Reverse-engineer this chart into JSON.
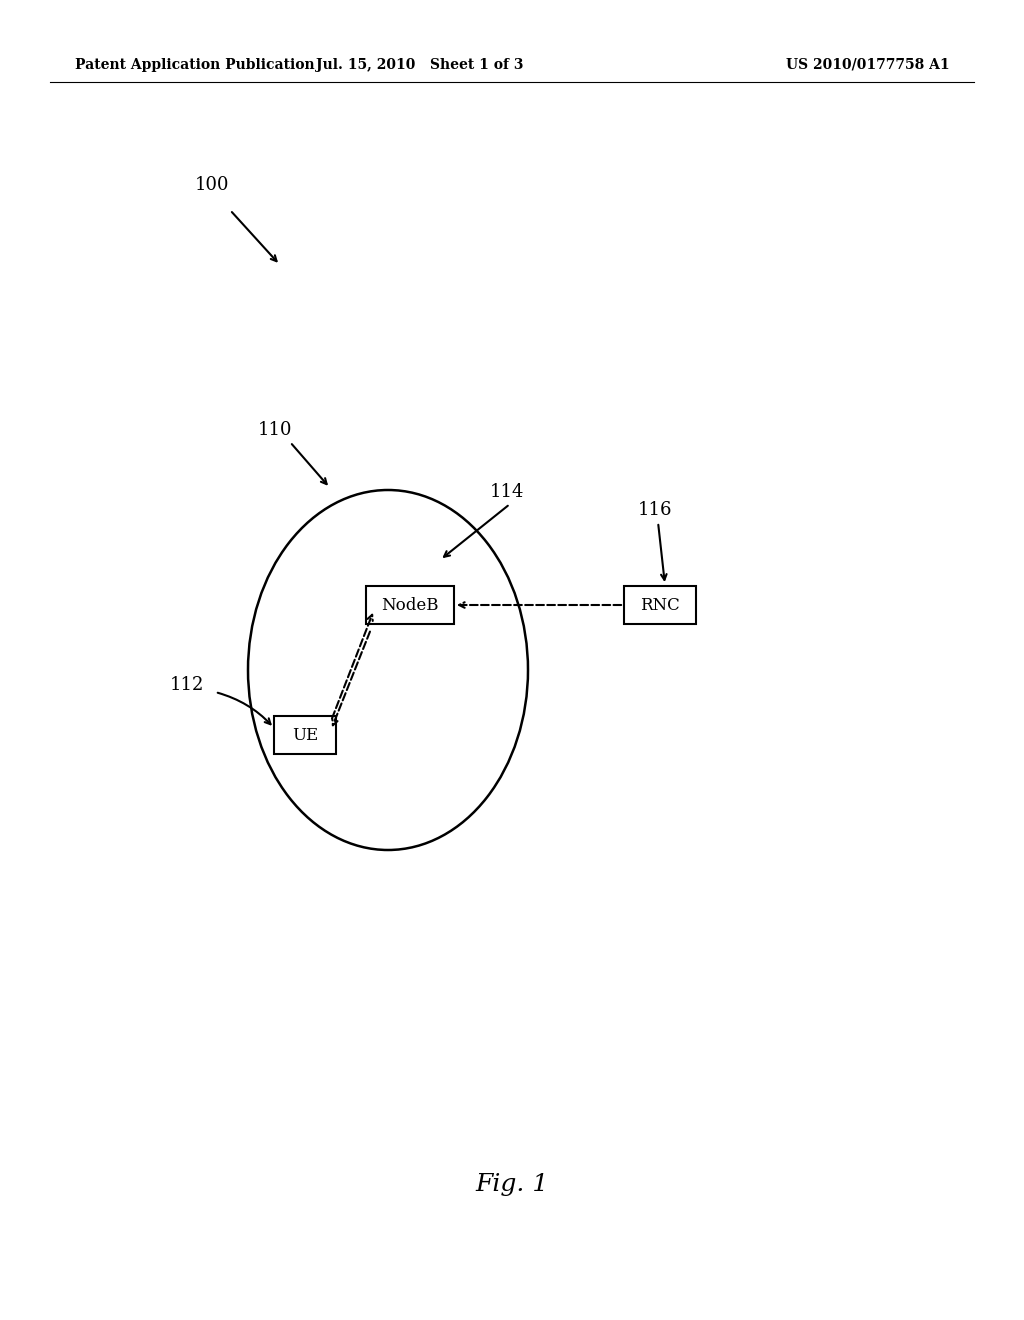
{
  "header_left": "Patent Application Publication",
  "header_mid": "Jul. 15, 2010   Sheet 1 of 3",
  "header_right": "US 2010/0177758 A1",
  "label_100": "100",
  "label_110": "110",
  "label_112": "112",
  "label_114": "114",
  "label_116": "116",
  "label_nodeb": "NodeB",
  "label_ue": "UE",
  "label_rnc": "RNC",
  "fig_label": "Fig. 1",
  "bg_color": "#ffffff"
}
